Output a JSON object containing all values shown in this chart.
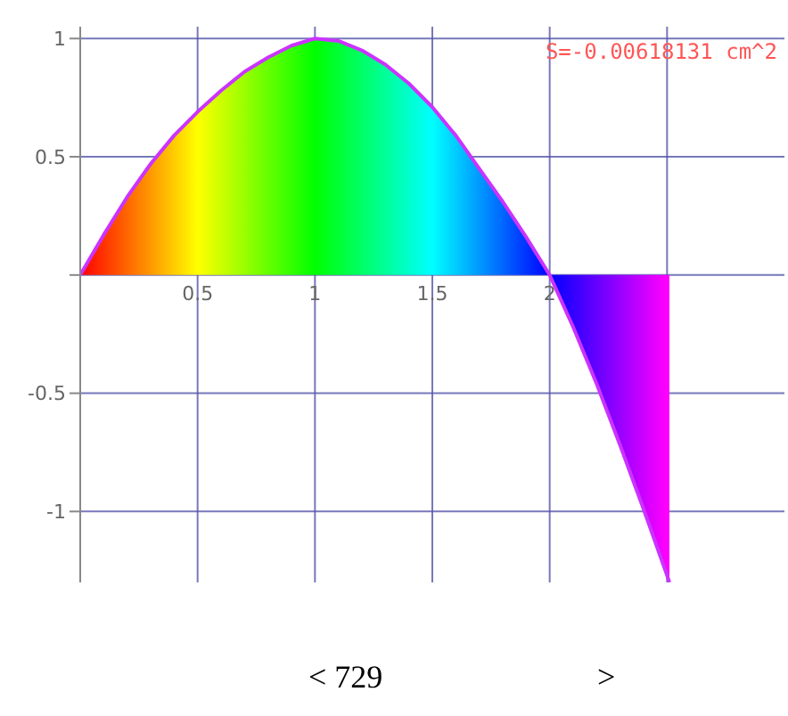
{
  "chart_data": {
    "type": "area",
    "x": [
      0,
      0.1,
      0.2,
      0.3,
      0.4,
      0.5,
      0.6,
      0.7,
      0.8,
      0.9,
      1,
      1.1,
      1.2,
      1.3,
      1.4,
      1.5,
      1.6,
      1.7,
      1.8,
      1.9,
      2,
      2.1,
      2.2,
      2.3,
      2.4,
      2.5,
      2.51
    ],
    "series": [
      {
        "color": "#cc33ff",
        "values": [
          0,
          0.17,
          0.33,
          0.47,
          0.59,
          0.69,
          0.78,
          0.86,
          0.92,
          0.97,
          1,
          0.99,
          0.95,
          0.89,
          0.81,
          0.71,
          0.59,
          0.45,
          0.31,
          0.16,
          0,
          -0.22,
          -0.46,
          -0.72,
          -0.99,
          -1.27,
          -1.3
        ]
      }
    ],
    "xlim": [
      0,
      3
    ],
    "xticks": [
      {
        "value": 0,
        "label": null
      },
      0.5,
      1,
      1.5,
      2,
      {
        "value": 2.5,
        "label": null
      }
    ],
    "ylim": [
      -1.3,
      1.05
    ],
    "yticks": [
      -1,
      -0.5,
      {
        "value": 0,
        "label": null
      },
      0.5,
      1
    ],
    "grid": true,
    "annotations": [
      "S=-0.00618131 cm^2",
      "< 729",
      ">"
    ]
  }
}
